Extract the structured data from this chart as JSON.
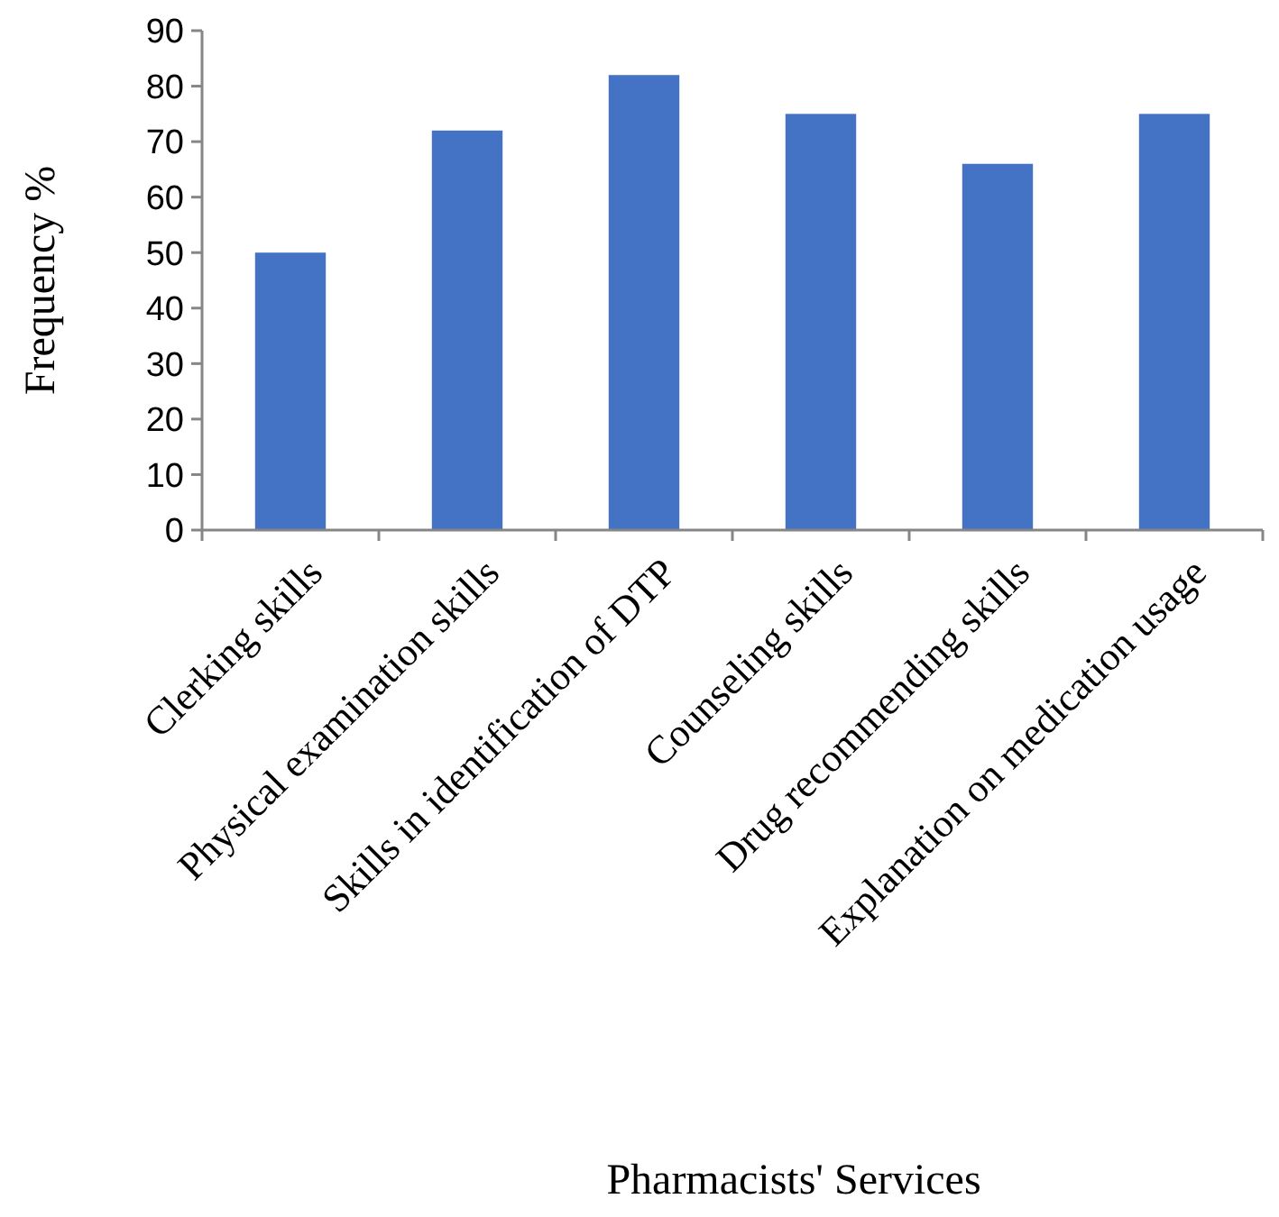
{
  "chart_data": {
    "type": "bar",
    "xlabel": "Pharmacists' Services",
    "ylabel": "Frequency %",
    "categories": [
      "Clerking skills",
      "Physical examination skills",
      "Skills in identification of DTP",
      "Counseling skills",
      "Drug recommending skills",
      "Explanation on medication usage"
    ],
    "values": [
      50,
      72,
      82,
      75,
      66,
      75
    ],
    "color": "#4472c4",
    "ylim": [
      0,
      90
    ],
    "yticks": [
      0,
      10,
      20,
      30,
      40,
      50,
      60,
      70,
      80,
      90
    ],
    "grid": false
  }
}
